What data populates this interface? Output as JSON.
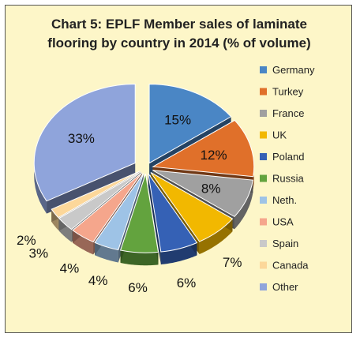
{
  "chart_data": {
    "type": "pie",
    "title_lines": [
      "Chart 5: EPLF Member sales of laminate",
      "flooring by country in 2014 (% of volume)"
    ],
    "categories": [
      "Germany",
      "Turkey",
      "France",
      "UK",
      "Poland",
      "Russia",
      "Neth.",
      "USA",
      "Spain",
      "Canada",
      "Other"
    ],
    "values": [
      15,
      12,
      8,
      7,
      6,
      6,
      4,
      4,
      3,
      2,
      33
    ],
    "labels": [
      "15%",
      "12%",
      "8%",
      "7%",
      "6%",
      "6%",
      "4%",
      "4%",
      "3%",
      "2%",
      "33%"
    ],
    "colors": [
      "#4a86c5",
      "#e0702a",
      "#a0a0a0",
      "#f2b800",
      "#3561b5",
      "#63a33e",
      "#9ec3e6",
      "#f5a68c",
      "#c9c9c9",
      "#fcd79a",
      "#8fa4db"
    ],
    "legend_position": "right",
    "exploded": true,
    "three_d": true
  }
}
